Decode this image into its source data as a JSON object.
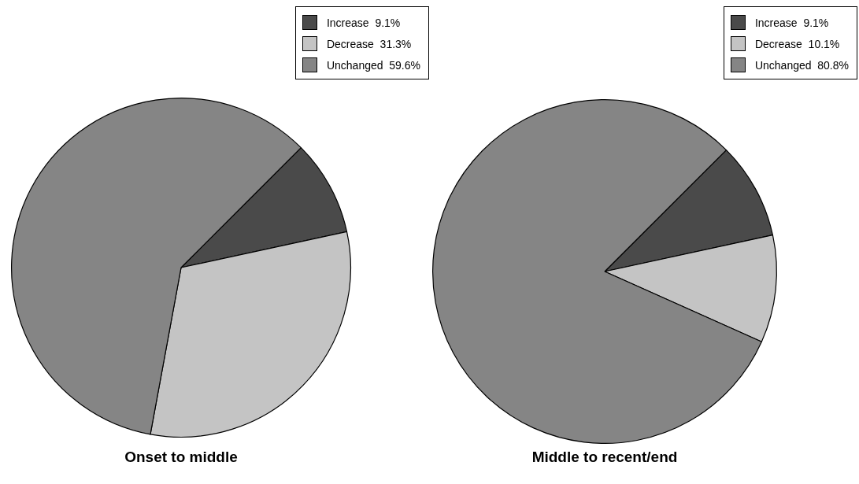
{
  "chart_data": [
    {
      "type": "pie",
      "title": "Onset to middle",
      "categories": [
        "Increase",
        "Decrease",
        "Unchanged"
      ],
      "values": [
        9.1,
        31.3,
        59.6
      ],
      "value_labels": [
        "9.1%",
        "31.3%",
        "59.6%"
      ],
      "colors": [
        "#4a4a4a",
        "#c4c4c4",
        "#858585"
      ],
      "legend": "top right"
    },
    {
      "type": "pie",
      "title": "Middle to recent/end",
      "categories": [
        "Increase",
        "Decrease",
        "Unchanged"
      ],
      "values": [
        9.1,
        10.1,
        80.8
      ],
      "value_labels": [
        "9.1%",
        "10.1%",
        "80.8%"
      ],
      "colors": [
        "#4a4a4a",
        "#c4c4c4",
        "#858585"
      ],
      "legend": "top right"
    }
  ]
}
